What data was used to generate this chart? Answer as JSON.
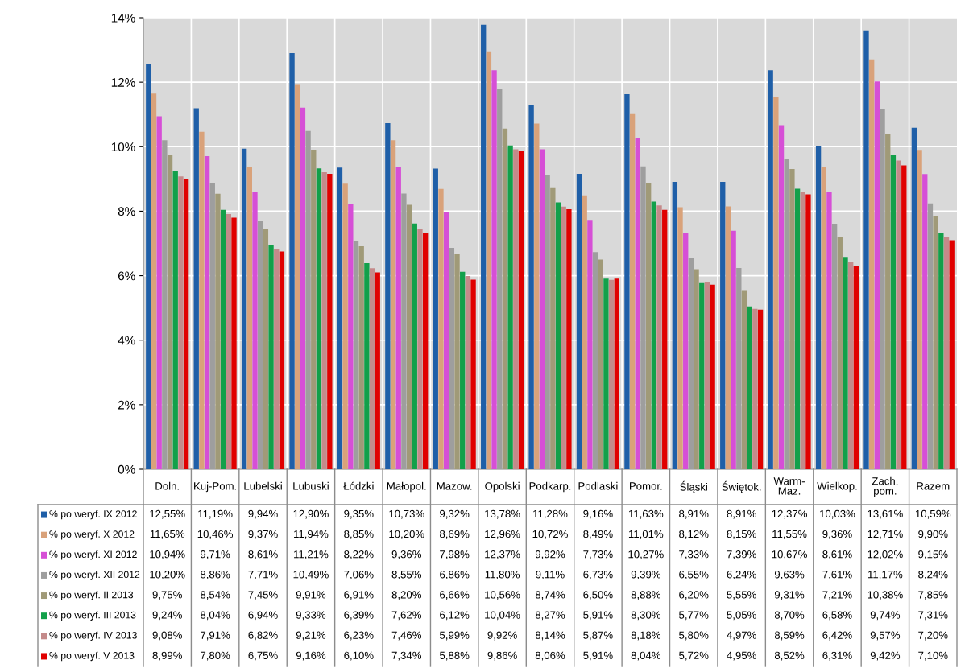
{
  "chart_data": {
    "type": "bar",
    "categories": [
      "Doln.",
      "Kuj-Pom.",
      "Lubelski",
      "Lubuski",
      "Łódzki",
      "Małopol.",
      "Mazow.",
      "Opolski",
      "Podkarp.",
      "Podlaski",
      "Pomor.",
      "Śląski",
      "Świętok.",
      "Warm-Maz.",
      "Wielkop.",
      "Zach. pom.",
      "Razem"
    ],
    "series": [
      {
        "name": "% po weryf. IX 2012",
        "color": "#1f5fa8",
        "values": [
          12.55,
          11.19,
          9.94,
          12.9,
          9.35,
          10.73,
          9.32,
          13.78,
          11.28,
          9.16,
          11.63,
          8.91,
          8.91,
          12.37,
          10.03,
          13.61,
          10.59
        ],
        "value_labels": [
          "12,55%",
          "11,19%",
          "9,94%",
          "12,90%",
          "9,35%",
          "10,73%",
          "9,32%",
          "13,78%",
          "11,28%",
          "9,16%",
          "11,63%",
          "8,91%",
          "8,91%",
          "12,37%",
          "10,03%",
          "13,61%",
          "10,59%"
        ]
      },
      {
        "name": "% po weryf. X 2012",
        "color": "#d9a27a",
        "values": [
          11.65,
          10.46,
          9.37,
          11.94,
          8.85,
          10.2,
          8.69,
          12.96,
          10.72,
          8.49,
          11.01,
          8.12,
          8.15,
          11.55,
          9.36,
          12.71,
          9.9
        ],
        "value_labels": [
          "11,65%",
          "10,46%",
          "9,37%",
          "11,94%",
          "8,85%",
          "10,20%",
          "8,69%",
          "12,96%",
          "10,72%",
          "8,49%",
          "11,01%",
          "8,12%",
          "8,15%",
          "11,55%",
          "9,36%",
          "12,71%",
          "9,90%"
        ]
      },
      {
        "name": "% po weryf. XI 2012",
        "color": "#d64fd6",
        "values": [
          10.94,
          9.71,
          8.61,
          11.21,
          8.22,
          9.36,
          7.98,
          12.37,
          9.92,
          7.73,
          10.27,
          7.33,
          7.39,
          10.67,
          8.61,
          12.02,
          9.15
        ],
        "value_labels": [
          "10,94%",
          "9,71%",
          "8,61%",
          "11,21%",
          "8,22%",
          "9,36%",
          "7,98%",
          "12,37%",
          "9,92%",
          "7,73%",
          "10,27%",
          "7,33%",
          "7,39%",
          "10,67%",
          "8,61%",
          "12,02%",
          "9,15%"
        ]
      },
      {
        "name": "% po weryf. XII 2012",
        "color": "#9e9e9e",
        "values": [
          10.2,
          8.86,
          7.71,
          10.49,
          7.06,
          8.55,
          6.86,
          11.8,
          9.11,
          6.73,
          9.39,
          6.55,
          6.24,
          9.63,
          7.61,
          11.17,
          8.24
        ],
        "value_labels": [
          "10,20%",
          "8,86%",
          "7,71%",
          "10,49%",
          "7,06%",
          "8,55%",
          "6,86%",
          "11,80%",
          "9,11%",
          "6,73%",
          "9,39%",
          "6,55%",
          "6,24%",
          "9,63%",
          "7,61%",
          "11,17%",
          "8,24%"
        ]
      },
      {
        "name": "% po weryf. II 2013",
        "color": "#a09a78",
        "values": [
          9.75,
          8.54,
          7.45,
          9.91,
          6.91,
          8.2,
          6.66,
          10.56,
          8.74,
          6.5,
          8.88,
          6.2,
          5.55,
          9.31,
          7.21,
          10.38,
          7.85
        ],
        "value_labels": [
          "9,75%",
          "8,54%",
          "7,45%",
          "9,91%",
          "6,91%",
          "8,20%",
          "6,66%",
          "10,56%",
          "8,74%",
          "6,50%",
          "8,88%",
          "6,20%",
          "5,55%",
          "9,31%",
          "7,21%",
          "10,38%",
          "7,85%"
        ]
      },
      {
        "name": "% po weryf. III 2013",
        "color": "#12a04a",
        "values": [
          9.24,
          8.04,
          6.94,
          9.33,
          6.39,
          7.62,
          6.12,
          10.04,
          8.27,
          5.91,
          8.3,
          5.77,
          5.05,
          8.7,
          6.58,
          9.74,
          7.31
        ],
        "value_labels": [
          "9,24%",
          "8,04%",
          "6,94%",
          "9,33%",
          "6,39%",
          "7,62%",
          "6,12%",
          "10,04%",
          "8,27%",
          "5,91%",
          "8,30%",
          "5,77%",
          "5,05%",
          "8,70%",
          "6,58%",
          "9,74%",
          "7,31%"
        ]
      },
      {
        "name": "% po weryf. IV 2013",
        "color": "#c48a8a",
        "values": [
          9.08,
          7.91,
          6.82,
          9.21,
          6.23,
          7.46,
          5.99,
          9.92,
          8.14,
          5.87,
          8.18,
          5.8,
          4.97,
          8.59,
          6.42,
          9.57,
          7.2
        ],
        "value_labels": [
          "9,08%",
          "7,91%",
          "6,82%",
          "9,21%",
          "6,23%",
          "7,46%",
          "5,99%",
          "9,92%",
          "8,14%",
          "5,87%",
          "8,18%",
          "5,80%",
          "4,97%",
          "8,59%",
          "6,42%",
          "9,57%",
          "7,20%"
        ]
      },
      {
        "name": "% po weryf. V 2013",
        "color": "#e00000",
        "values": [
          8.99,
          7.8,
          6.75,
          9.16,
          6.1,
          7.34,
          5.88,
          9.86,
          8.06,
          5.91,
          8.04,
          5.72,
          4.95,
          8.52,
          6.31,
          9.42,
          7.1
        ],
        "value_labels": [
          "8,99%",
          "7,80%",
          "6,75%",
          "9,16%",
          "6,10%",
          "7,34%",
          "5,88%",
          "9,86%",
          "8,06%",
          "5,91%",
          "8,04%",
          "5,72%",
          "4,95%",
          "8,52%",
          "6,31%",
          "9,42%",
          "7,10%"
        ]
      }
    ],
    "ylim": [
      0,
      14
    ],
    "yticks": [
      {
        "value": 0,
        "label": "0%"
      },
      {
        "value": 2,
        "label": "2%"
      },
      {
        "value": 4,
        "label": "4%"
      },
      {
        "value": 6,
        "label": "6%"
      },
      {
        "value": 8,
        "label": "8%"
      },
      {
        "value": 10,
        "label": "10%"
      },
      {
        "value": 12,
        "label": "12%"
      },
      {
        "value": 14,
        "label": "14%"
      }
    ],
    "grid": true,
    "legend": "bottom"
  }
}
